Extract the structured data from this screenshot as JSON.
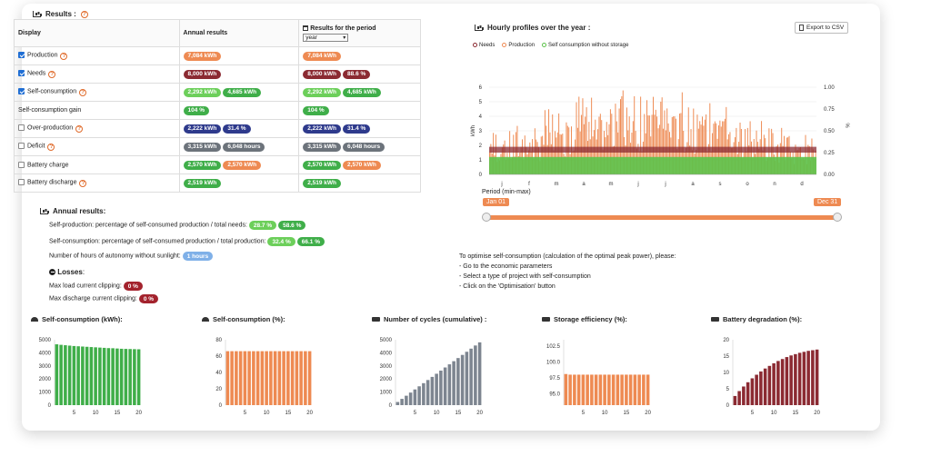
{
  "results": {
    "title": "Results :",
    "header": {
      "display": "Display",
      "annual": "Annual results",
      "period": "Results for the period",
      "period_select": "year"
    },
    "rows": [
      {
        "label": "Production",
        "checkbox": true,
        "checked": true,
        "help": true,
        "annual": [
          {
            "text": "7,084 kWh",
            "color": "orange"
          }
        ],
        "period": [
          {
            "text": "7,084 kWh",
            "color": "orange"
          }
        ]
      },
      {
        "label": "Needs",
        "checkbox": true,
        "checked": true,
        "help": true,
        "annual": [
          {
            "text": "8,000 kWh",
            "color": "maroon"
          }
        ],
        "period": [
          {
            "text": "8,000 kWh",
            "color": "maroon"
          },
          {
            "text": "88.6 %",
            "color": "maroon"
          }
        ]
      },
      {
        "label": "Self-consumption",
        "checkbox": true,
        "checked": true,
        "help": true,
        "annual": [
          {
            "text": "2,292 kWh",
            "color": "lgreen"
          },
          {
            "text": "4,685 kWh",
            "color": "green"
          }
        ],
        "period": [
          {
            "text": "2,292 kWh",
            "color": "lgreen"
          },
          {
            "text": "4,685 kWh",
            "color": "green"
          }
        ]
      },
      {
        "label": "Self-consumption gain",
        "checkbox": false,
        "checked": false,
        "help": false,
        "annual": [
          {
            "text": "104 %",
            "color": "green"
          }
        ],
        "period": [
          {
            "text": "104 %",
            "color": "green"
          }
        ]
      },
      {
        "label": "Over-production",
        "checkbox": true,
        "checked": false,
        "help": true,
        "annual": [
          {
            "text": "2,222 kWh",
            "color": "navy"
          },
          {
            "text": "31.4 %",
            "color": "navy"
          }
        ],
        "period": [
          {
            "text": "2,222 kWh",
            "color": "navy"
          },
          {
            "text": "31.4 %",
            "color": "navy"
          }
        ]
      },
      {
        "label": "Deficit",
        "checkbox": true,
        "checked": false,
        "help": true,
        "annual": [
          {
            "text": "3,315 kWh",
            "color": "gray"
          },
          {
            "text": "6,048 hours",
            "color": "gray"
          }
        ],
        "period": [
          {
            "text": "3,315 kWh",
            "color": "gray"
          },
          {
            "text": "6,048 hours",
            "color": "gray"
          }
        ]
      },
      {
        "label": "Battery charge",
        "checkbox": true,
        "checked": false,
        "help": false,
        "annual": [
          {
            "text": "2,570 kWh",
            "color": "green"
          },
          {
            "text": "2,570 kWh",
            "color": "orange"
          }
        ],
        "period": [
          {
            "text": "2,570 kWh",
            "color": "green"
          },
          {
            "text": "2,570 kWh",
            "color": "orange"
          }
        ]
      },
      {
        "label": "Battery discharge",
        "checkbox": true,
        "checked": false,
        "help": true,
        "annual": [
          {
            "text": "2,519 kWh",
            "color": "green"
          }
        ],
        "period": [
          {
            "text": "2,519 kWh",
            "color": "green"
          }
        ]
      }
    ]
  },
  "annual": {
    "title": "Annual results:",
    "self_production_label": "Self-production: percentage of self-consumed production / total needs:",
    "self_production_values": [
      "28.7 %",
      "58.6 %"
    ],
    "self_consumption_label": "Self-consumption: percentage of self-consumed production / total production:",
    "self_consumption_values": [
      "32.4 %",
      "66.1 %"
    ],
    "autonomy_label": "Number of hours of autonomy without sunlight:",
    "autonomy_value": "1 hours",
    "losses_title": "Losses",
    "losses_colon": ":",
    "max_load_label": "Max load current clipping:",
    "max_load_value": "0 %",
    "max_discharge_label": "Max discharge current clipping:",
    "max_discharge_value": "0 %"
  },
  "hourly": {
    "title": "Hourly profiles over the year :",
    "export_label": "Export to CSV",
    "legend": [
      {
        "name": "Needs",
        "color": "#8b2a32"
      },
      {
        "name": "Production",
        "color": "#ee8a52"
      },
      {
        "name": "Self consumption without storage",
        "color": "#5cc24a"
      }
    ],
    "y_label": "kWh",
    "y2_label": "%",
    "period_label": "Period (min-max)",
    "range_start": "Jan 01",
    "range_end": "Dec 31"
  },
  "optimise": {
    "lines": [
      "To optimise self-consumption (calculation of the optimal peak power), please:",
      "- Go to the economic parameters",
      "- Select a type of project with self-consumption",
      "- Click on the 'Optimisation' button"
    ]
  },
  "mini_titles": {
    "self_kwh": "Self-consumption (kWh):",
    "self_pct": "Self-consumption (%):",
    "cycles": "Number of cycles (cumulative) :",
    "storage": "Storage efficiency (%):",
    "degradation": "Battery degradation (%):"
  },
  "chart_data": [
    {
      "type": "area",
      "title": "Hourly profiles over the year :",
      "ylabel": "kWh",
      "y2label": "%",
      "ylim": [
        0,
        6
      ],
      "y2lim": [
        0,
        1
      ],
      "yticks": [
        0,
        1,
        2,
        3,
        4,
        5,
        6
      ],
      "y2ticks": [
        "0.00",
        "0.25",
        "0.50",
        "0.75",
        "1.00"
      ],
      "categories": [
        "j",
        "f",
        "m",
        "a",
        "m",
        "j",
        "j",
        "a",
        "s",
        "o",
        "n",
        "d"
      ],
      "series": [
        {
          "name": "Needs",
          "color": "#8b2a32",
          "typical": 1.9
        },
        {
          "name": "Production",
          "color": "#ee8a52",
          "peak_by_month": [
            3.0,
            3.5,
            4.5,
            5.5,
            6.0,
            6.0,
            6.0,
            5.7,
            5.0,
            4.0,
            3.2,
            2.8
          ]
        },
        {
          "name": "Self consumption without storage",
          "color": "#5cc24a",
          "typical": 1.2
        }
      ],
      "legend_position": "top-left",
      "grid": true
    },
    {
      "type": "bar",
      "title": "Self-consumption (kWh):",
      "color": "#3fae49",
      "x": [
        1,
        2,
        3,
        4,
        5,
        6,
        7,
        8,
        9,
        10,
        11,
        12,
        13,
        14,
        15,
        16,
        17,
        18,
        19,
        20
      ],
      "values": [
        4650,
        4610,
        4580,
        4550,
        4520,
        4500,
        4480,
        4460,
        4440,
        4420,
        4400,
        4380,
        4360,
        4350,
        4330,
        4310,
        4300,
        4290,
        4280,
        4270
      ],
      "xticks": [
        5,
        10,
        15,
        20
      ],
      "yticks": [
        0,
        1000,
        2000,
        3000,
        4000,
        5000
      ],
      "ylim": [
        0,
        5000
      ]
    },
    {
      "type": "bar",
      "title": "Self-consumption (%):",
      "color": "#ee8a52",
      "x": [
        1,
        2,
        3,
        4,
        5,
        6,
        7,
        8,
        9,
        10,
        11,
        12,
        13,
        14,
        15,
        16,
        17,
        18,
        19,
        20
      ],
      "values": [
        66,
        66,
        66,
        66,
        66,
        66,
        66,
        66,
        66,
        66,
        66,
        66,
        66,
        66,
        66,
        66,
        66,
        66,
        66,
        66
      ],
      "xticks": [
        5,
        10,
        15,
        20
      ],
      "yticks": [
        0,
        20,
        40,
        60,
        80
      ],
      "ylim": [
        0,
        80
      ]
    },
    {
      "type": "bar",
      "title": "Number of cycles (cumulative) :",
      "color": "#7d8590",
      "x": [
        1,
        2,
        3,
        4,
        5,
        6,
        7,
        8,
        9,
        10,
        11,
        12,
        13,
        14,
        15,
        16,
        17,
        18,
        19,
        20
      ],
      "values": [
        240,
        480,
        720,
        960,
        1200,
        1440,
        1680,
        1920,
        2160,
        2400,
        2640,
        2880,
        3120,
        3360,
        3600,
        3840,
        4080,
        4320,
        4560,
        4800
      ],
      "xticks": [
        5,
        10,
        15,
        20
      ],
      "yticks": [
        0,
        1000,
        2000,
        3000,
        4000,
        5000
      ],
      "ylim": [
        0,
        5000
      ]
    },
    {
      "type": "bar",
      "title": "Storage efficiency (%):",
      "color": "#ee8a52",
      "x": [
        1,
        2,
        3,
        4,
        5,
        6,
        7,
        8,
        9,
        10,
        11,
        12,
        13,
        14,
        15,
        16,
        17,
        18,
        19,
        20
      ],
      "values": [
        98.1,
        98.0,
        98.0,
        98.0,
        98.0,
        98.0,
        98.0,
        98.0,
        98.0,
        98.0,
        98.0,
        98.0,
        98.0,
        98.0,
        98.0,
        98.0,
        98.0,
        98.0,
        98.0,
        98.0
      ],
      "xticks": [
        5,
        10,
        15,
        20
      ],
      "yticks": [
        95.0,
        97.5,
        100.0,
        102.5
      ],
      "ylim": [
        93.2,
        103.5
      ],
      "ytick_labels": [
        "95.0",
        "97.5",
        "100.0",
        "102.5"
      ]
    },
    {
      "type": "bar",
      "title": "Battery degradation (%):",
      "color": "#8b2a32",
      "x": [
        1,
        2,
        3,
        4,
        5,
        6,
        7,
        8,
        9,
        10,
        11,
        12,
        13,
        14,
        15,
        16,
        17,
        18,
        19,
        20
      ],
      "values": [
        2.8,
        4.3,
        5.7,
        7.0,
        8.2,
        9.3,
        10.3,
        11.2,
        12.0,
        12.8,
        13.5,
        14.1,
        14.7,
        15.2,
        15.6,
        16.0,
        16.3,
        16.6,
        16.8,
        17.0
      ],
      "xticks": [
        5,
        10,
        15,
        20
      ],
      "yticks": [
        0,
        5,
        10,
        15,
        20
      ],
      "ylim": [
        0,
        20
      ]
    }
  ]
}
